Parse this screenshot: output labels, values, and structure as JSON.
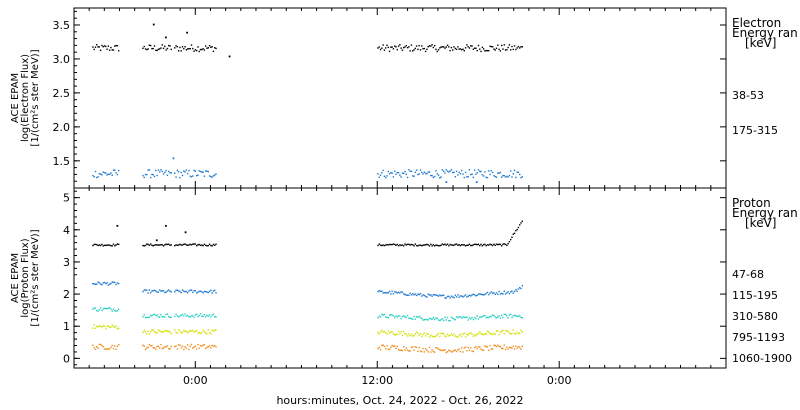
{
  "chart_data": [
    {
      "type": "scatter",
      "panel": "electron",
      "ylabel_lines": [
        "ACE EPAM",
        "log(Electron Flux)",
        "[1/(cm²s ster MeV)]"
      ],
      "ylim": [
        1.1,
        3.75
      ],
      "yticks": [
        1.5,
        2.0,
        2.5,
        3.0,
        3.5
      ],
      "ytick_labels": [
        "1.5",
        "2.0",
        "2.5",
        "3.0",
        "3.5"
      ],
      "legend_title": [
        "Electron",
        "Energy ran",
        "[keV]"
      ],
      "segments_hours": [
        [
          -6.8,
          -5.1
        ],
        [
          -3.5,
          -1.6
        ],
        [
          -1.4,
          1.4
        ],
        [
          12.0,
          21.6
        ]
      ],
      "series": [
        {
          "name": "38-53",
          "color": "#000000",
          "level": 3.17,
          "noise": 0.05,
          "outliers": [
            {
              "x": -2.8,
              "y": 3.52
            },
            {
              "x": -2.0,
              "y": 3.33
            },
            {
              "x": -0.6,
              "y": 3.4
            },
            {
              "x": 2.2,
              "y": 3.05
            }
          ]
        },
        {
          "name": "175-315",
          "color": "#1e7ad0",
          "level": 1.32,
          "noise": 0.06,
          "outliers": [
            {
              "x": -1.5,
              "y": 1.55
            },
            {
              "x": 16.5,
              "y": 1.2
            },
            {
              "x": 18.5,
              "y": 1.2
            }
          ]
        }
      ]
    },
    {
      "type": "scatter",
      "panel": "proton",
      "ylabel_lines": [
        "ACE EPAM",
        "log(Proton Flux)",
        "[1/(cm²s ster MeV)]"
      ],
      "ylim": [
        -0.3,
        5.3
      ],
      "yticks": [
        0,
        1,
        2,
        3,
        4,
        5
      ],
      "ytick_labels": [
        "0",
        "1",
        "2",
        "3",
        "4",
        "5"
      ],
      "legend_title": [
        "Proton",
        "Energy ran",
        "[keV]"
      ],
      "segments_hours": [
        [
          -6.8,
          -5.1
        ],
        [
          -3.5,
          -1.6
        ],
        [
          -1.4,
          1.4
        ],
        [
          12.0,
          21.6
        ]
      ],
      "series": [
        {
          "name": "47-68",
          "color": "#000000",
          "level": 3.55,
          "noise": 0.03,
          "rise": {
            "start": 20.5,
            "end": 21.6,
            "to": 4.35
          },
          "outliers": [
            {
              "x": -5.2,
              "y": 4.15
            },
            {
              "x": -2.0,
              "y": 4.15
            },
            {
              "x": -0.7,
              "y": 3.95
            },
            {
              "x": -2.6,
              "y": 3.7
            }
          ]
        },
        {
          "name": "115-195",
          "color": "#1e7ad0",
          "level": 2.1,
          "noise": 0.05,
          "start_level": 2.35,
          "dip": {
            "center": 16.5,
            "depth": 0.15,
            "width": 3
          },
          "rise": {
            "start": 21.0,
            "end": 21.6,
            "to": 2.3
          }
        },
        {
          "name": "310-580",
          "color": "#27d0c0",
          "level": 1.35,
          "noise": 0.06,
          "start_level": 1.55,
          "dip": {
            "center": 16.5,
            "depth": 0.1,
            "width": 3
          }
        },
        {
          "name": "795-1193",
          "color": "#d4e000",
          "level": 0.85,
          "noise": 0.07,
          "start_level": 1.0,
          "dip": {
            "center": 16.5,
            "depth": 0.12,
            "width": 3
          }
        },
        {
          "name": "1060-1900",
          "color": "#f08c1e",
          "level": 0.38,
          "noise": 0.08,
          "dip": {
            "center": 16.5,
            "depth": 0.1,
            "width": 3
          }
        }
      ]
    }
  ],
  "xaxis": {
    "xlim_hours": [
      -8,
      35
    ],
    "ticks_hours": [
      0,
      12,
      24
    ],
    "tick_labels": [
      "0:00",
      "12:00",
      "0:00"
    ],
    "minor_step_hours": 1,
    "label": "hours:minutes, Oct. 24, 2022 - Oct. 26, 2022"
  }
}
